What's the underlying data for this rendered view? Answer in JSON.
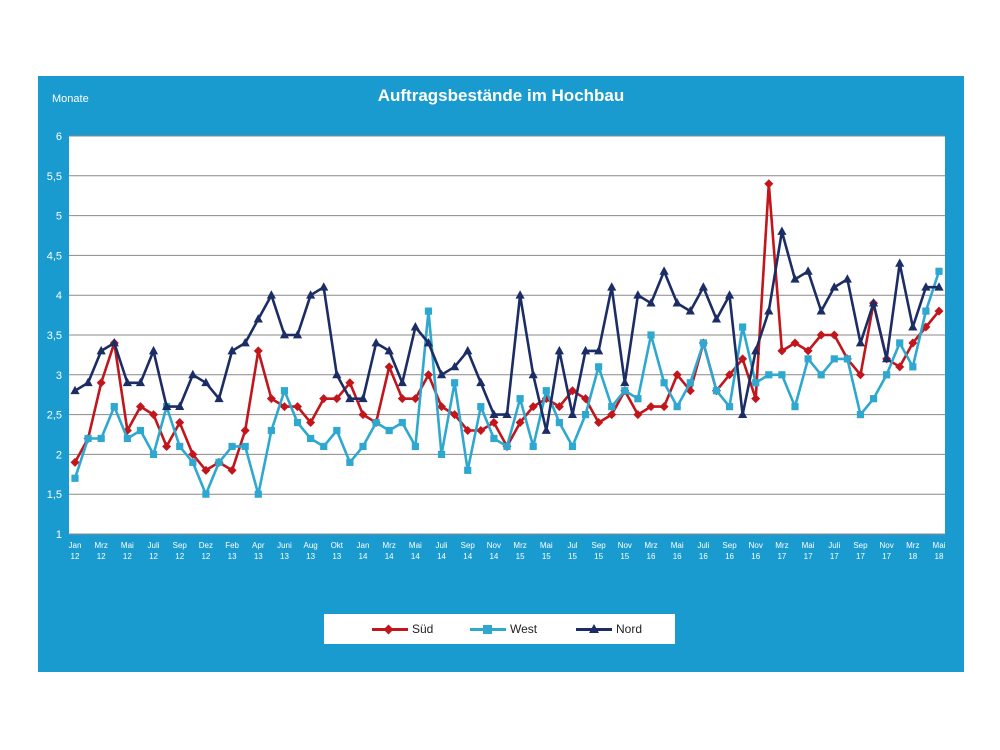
{
  "chart_data": {
    "type": "line",
    "title": "Auftragsbestände im Hochbau",
    "ylabel": "Monate",
    "ylim": [
      1,
      6
    ],
    "yticks": [
      "1",
      "1,5",
      "2",
      "2,5",
      "3",
      "3,5",
      "4",
      "4,5",
      "5",
      "5,5",
      "6"
    ],
    "grid": true,
    "legend_position": "bottom",
    "x_tick_labels": [
      [
        "Jan",
        "12"
      ],
      [
        "Mrz",
        "12"
      ],
      [
        "Mai",
        "12"
      ],
      [
        "Juli",
        "12"
      ],
      [
        "Sep",
        "12"
      ],
      [
        "Dez",
        "12"
      ],
      [
        "Feb",
        "13"
      ],
      [
        "Apr",
        "13"
      ],
      [
        "Juni",
        "13"
      ],
      [
        "Aug",
        "13"
      ],
      [
        "Okt",
        "13"
      ],
      [
        "Jan",
        "14"
      ],
      [
        "Mrz",
        "14"
      ],
      [
        "Mai",
        "14"
      ],
      [
        "Juli",
        "14"
      ],
      [
        "Sep",
        "14"
      ],
      [
        "Nov",
        "14"
      ],
      [
        "Mrz",
        "15"
      ],
      [
        "Mai",
        "15"
      ],
      [
        "Jul",
        "15"
      ],
      [
        "Sep",
        "15"
      ],
      [
        "Nov",
        "15"
      ],
      [
        "Mrz",
        "16"
      ],
      [
        "Mai",
        "16"
      ],
      [
        "Juli",
        "16"
      ],
      [
        "Sep",
        "16"
      ],
      [
        "Nov",
        "16"
      ],
      [
        "Mrz",
        "17"
      ],
      [
        "Mai",
        "17"
      ],
      [
        "Juli",
        "17"
      ],
      [
        "Sep",
        "17"
      ],
      [
        "Nov",
        "17"
      ],
      [
        "Mrz",
        "18"
      ],
      [
        "Mai",
        "18"
      ]
    ],
    "series": [
      {
        "name": "Süd",
        "color": "#c0161c",
        "marker": "diamond",
        "values": [
          1.9,
          2.2,
          2.9,
          3.4,
          2.3,
          2.6,
          2.5,
          2.1,
          2.4,
          2.0,
          1.8,
          1.9,
          1.8,
          2.3,
          3.3,
          2.7,
          2.6,
          2.6,
          2.4,
          2.7,
          2.7,
          2.9,
          2.5,
          2.4,
          3.1,
          2.7,
          2.7,
          3.0,
          2.6,
          2.5,
          2.3,
          2.3,
          2.4,
          2.1,
          2.4,
          2.6,
          2.7,
          2.6,
          2.8,
          2.7,
          2.4,
          2.5,
          2.8,
          2.5,
          2.6,
          2.6,
          3.0,
          2.8,
          3.4,
          2.8,
          3.0,
          3.2,
          2.7,
          5.4,
          3.3,
          3.4,
          3.3,
          3.5,
          3.5,
          3.2,
          3.0,
          3.9,
          3.2,
          3.1,
          3.4,
          3.6,
          3.8
        ]
      },
      {
        "name": "West",
        "color": "#2fa8d0",
        "marker": "square",
        "values": [
          1.7,
          2.2,
          2.2,
          2.6,
          2.2,
          2.3,
          2.0,
          2.6,
          2.1,
          1.9,
          1.5,
          1.9,
          2.1,
          2.1,
          1.5,
          2.3,
          2.8,
          2.4,
          2.2,
          2.1,
          2.3,
          1.9,
          2.1,
          2.4,
          2.3,
          2.4,
          2.1,
          3.8,
          2.0,
          2.9,
          1.8,
          2.6,
          2.2,
          2.1,
          2.7,
          2.1,
          2.8,
          2.4,
          2.1,
          2.5,
          3.1,
          2.6,
          2.8,
          2.7,
          3.5,
          2.9,
          2.6,
          2.9,
          3.4,
          2.8,
          2.6,
          3.6,
          2.9,
          3.0,
          3.0,
          2.6,
          3.2,
          3.0,
          3.2,
          3.2,
          2.5,
          2.7,
          3.0,
          3.4,
          3.1,
          3.8,
          4.3
        ]
      },
      {
        "name": "Nord",
        "color": "#1c2d66",
        "marker": "triangle",
        "values": [
          2.8,
          2.9,
          3.3,
          3.4,
          2.9,
          2.9,
          3.3,
          2.6,
          2.6,
          3.0,
          2.9,
          2.7,
          3.3,
          3.4,
          3.7,
          4.0,
          3.5,
          3.5,
          4.0,
          4.1,
          3.0,
          2.7,
          2.7,
          3.4,
          3.3,
          2.9,
          3.6,
          3.4,
          3.0,
          3.1,
          3.3,
          2.9,
          2.5,
          2.5,
          4.0,
          3.0,
          2.3,
          3.3,
          2.5,
          3.3,
          3.3,
          4.1,
          2.9,
          4.0,
          3.9,
          4.3,
          3.9,
          3.8,
          4.1,
          3.7,
          4.0,
          2.5,
          3.3,
          3.8,
          4.8,
          4.2,
          4.3,
          3.8,
          4.1,
          4.2,
          3.4,
          3.9,
          3.2,
          4.4,
          3.6,
          4.1,
          4.1
        ]
      }
    ]
  }
}
